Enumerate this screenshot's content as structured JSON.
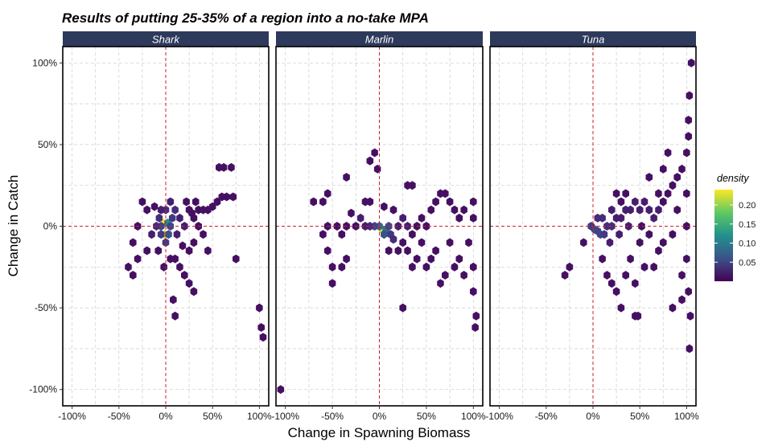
{
  "chart_data": {
    "type": "hexbin-facets",
    "title": "Results of putting 25-35% of a region into a no-take MPA",
    "xlabel": "Change in Spawning Biomass",
    "ylabel": "Change in Catch",
    "xlim": [
      -1.1,
      1.1
    ],
    "ylim": [
      -1.1,
      1.1
    ],
    "x_ticks": [
      -1,
      -0.5,
      0,
      0.5,
      1
    ],
    "x_tick_labels": [
      "-100%",
      "-50%",
      "0%",
      "50%",
      "100%"
    ],
    "y_ticks": [
      -1,
      -0.5,
      0,
      0.5,
      1
    ],
    "y_tick_labels": [
      "-100%",
      "-50%",
      "0%",
      "50%",
      "100%"
    ],
    "reference_lines": {
      "x": 0,
      "y": 0,
      "color": "#cc1f2f"
    },
    "legend": {
      "title": "density",
      "range": [
        0,
        0.24
      ],
      "breaks": [
        0.05,
        0.1,
        0.15,
        0.2
      ],
      "break_labels": [
        "0.05",
        "0.10",
        "0.15",
        "0.20"
      ]
    },
    "colors": {
      "strip_background": "#2e3a5c",
      "strip_text": "#ffffff",
      "gridline": "#cccccc",
      "reference_line": "#cc1f2f"
    },
    "facets": [
      {
        "name": "Shark",
        "points": [
          [
            -0.02,
            0.02,
            0.24
          ],
          [
            -0.01,
            -0.05,
            0.22
          ],
          [
            0.02,
            0.02,
            0.12
          ],
          [
            -0.05,
            0.0,
            0.05
          ],
          [
            0.03,
            -0.05,
            0.06
          ],
          [
            -0.05,
            -0.05,
            0.04
          ],
          [
            0.05,
            0.0,
            0.05
          ],
          [
            0.0,
            -0.1,
            0.04
          ],
          [
            0.07,
            0.05,
            0.04
          ],
          [
            -0.07,
            0.05,
            0.03
          ],
          [
            0.1,
            0.1,
            0.03
          ],
          [
            -0.1,
            0.0,
            0.03
          ],
          [
            0.15,
            0.05,
            0.02
          ],
          [
            0.12,
            -0.05,
            0.02
          ],
          [
            -0.15,
            -0.05,
            0.02
          ],
          [
            0.0,
            0.1,
            0.03
          ],
          [
            0.2,
            0.0,
            0.02
          ],
          [
            0.25,
            0.1,
            0.01
          ],
          [
            0.3,
            0.05,
            0.01
          ],
          [
            0.35,
            0.1,
            0.01
          ],
          [
            0.4,
            0.1,
            0.01
          ],
          [
            0.45,
            0.1,
            0.01
          ],
          [
            0.5,
            0.12,
            0.01
          ],
          [
            0.55,
            0.15,
            0.01
          ],
          [
            0.6,
            0.18,
            0.01
          ],
          [
            0.65,
            0.18,
            0.01
          ],
          [
            0.72,
            0.18,
            0.01
          ],
          [
            0.57,
            0.36,
            0.01
          ],
          [
            0.62,
            0.36,
            0.01
          ],
          [
            0.7,
            0.36,
            0.01
          ],
          [
            -0.25,
            0.15,
            0.01
          ],
          [
            -0.3,
            0.0,
            0.01
          ],
          [
            -0.35,
            -0.1,
            0.01
          ],
          [
            -0.4,
            -0.25,
            0.01
          ],
          [
            -0.35,
            -0.3,
            0.01
          ],
          [
            -0.3,
            -0.2,
            0.01
          ],
          [
            -0.2,
            -0.15,
            0.01
          ],
          [
            0.1,
            -0.2,
            0.01
          ],
          [
            0.2,
            -0.3,
            0.01
          ],
          [
            0.25,
            -0.35,
            0.01
          ],
          [
            0.3,
            -0.4,
            0.01
          ],
          [
            0.15,
            -0.25,
            0.01
          ],
          [
            0.1,
            -0.55,
            0.01
          ],
          [
            0.08,
            -0.45,
            0.01
          ],
          [
            0.45,
            -0.15,
            0.01
          ],
          [
            0.75,
            -0.2,
            0.01
          ],
          [
            1.0,
            -0.5,
            0.01
          ],
          [
            1.02,
            -0.62,
            0.01
          ],
          [
            1.04,
            -0.68,
            0.01
          ],
          [
            0.35,
            0.0,
            0.01
          ],
          [
            0.3,
            -0.1,
            0.01
          ],
          [
            0.4,
            -0.05,
            0.01
          ],
          [
            0.05,
            0.15,
            0.02
          ],
          [
            -0.05,
            0.1,
            0.02
          ],
          [
            -0.12,
            0.12,
            0.01
          ],
          [
            -0.2,
            0.1,
            0.01
          ],
          [
            0.25,
            -0.15,
            0.01
          ],
          [
            0.18,
            -0.12,
            0.01
          ],
          [
            0.05,
            -0.2,
            0.01
          ],
          [
            0.22,
            0.15,
            0.01
          ],
          [
            0.32,
            0.15,
            0.01
          ],
          [
            0.28,
            0.08,
            0.01
          ],
          [
            -0.02,
            -0.25,
            0.01
          ],
          [
            -0.08,
            -0.15,
            0.01
          ]
        ]
      },
      {
        "name": "Marlin",
        "points": [
          [
            0.03,
            -0.02,
            0.22
          ],
          [
            0.07,
            -0.02,
            0.09
          ],
          [
            0.0,
            0.0,
            0.08
          ],
          [
            -0.05,
            0.0,
            0.05
          ],
          [
            0.1,
            0.0,
            0.05
          ],
          [
            0.12,
            -0.05,
            0.04
          ],
          [
            0.05,
            -0.05,
            0.06
          ],
          [
            -0.1,
            0.0,
            0.03
          ],
          [
            0.15,
            -0.08,
            0.03
          ],
          [
            0.2,
            0.0,
            0.02
          ],
          [
            -0.15,
            0.0,
            0.02
          ],
          [
            0.25,
            0.05,
            0.02
          ],
          [
            0.3,
            0.0,
            0.02
          ],
          [
            0.35,
            -0.05,
            0.01
          ],
          [
            0.4,
            0.0,
            0.01
          ],
          [
            0.45,
            0.05,
            0.01
          ],
          [
            0.5,
            0.0,
            0.01
          ],
          [
            0.55,
            0.1,
            0.01
          ],
          [
            0.6,
            0.15,
            0.01
          ],
          [
            0.65,
            0.2,
            0.01
          ],
          [
            0.7,
            0.2,
            0.01
          ],
          [
            0.75,
            0.15,
            0.01
          ],
          [
            0.8,
            0.1,
            0.01
          ],
          [
            0.85,
            0.05,
            0.01
          ],
          [
            0.9,
            0.1,
            0.01
          ],
          [
            1.0,
            0.15,
            0.01
          ],
          [
            1.0,
            0.05,
            0.01
          ],
          [
            0.95,
            -0.1,
            0.01
          ],
          [
            1.0,
            -0.25,
            0.01
          ],
          [
            1.0,
            -0.4,
            0.01
          ],
          [
            1.03,
            -0.55,
            0.01
          ],
          [
            1.02,
            -0.62,
            0.01
          ],
          [
            0.9,
            -0.3,
            0.01
          ],
          [
            0.85,
            -0.2,
            0.01
          ],
          [
            0.7,
            -0.3,
            0.01
          ],
          [
            0.65,
            -0.35,
            0.01
          ],
          [
            0.55,
            -0.2,
            0.01
          ],
          [
            0.4,
            -0.2,
            0.01
          ],
          [
            0.35,
            -0.25,
            0.01
          ],
          [
            0.25,
            -0.5,
            0.01
          ],
          [
            0.3,
            -0.15,
            0.01
          ],
          [
            0.2,
            -0.15,
            0.01
          ],
          [
            0.1,
            -0.15,
            0.01
          ],
          [
            -0.1,
            0.15,
            0.01
          ],
          [
            -0.15,
            0.15,
            0.01
          ],
          [
            -0.35,
            -0.2,
            0.01
          ],
          [
            -0.4,
            -0.25,
            0.01
          ],
          [
            -0.5,
            -0.35,
            0.01
          ],
          [
            -0.5,
            -0.25,
            0.01
          ],
          [
            -0.55,
            -0.15,
            0.01
          ],
          [
            -0.6,
            -0.05,
            0.01
          ],
          [
            -0.55,
            0.0,
            0.01
          ],
          [
            -0.45,
            0.0,
            0.01
          ],
          [
            -0.35,
            0.0,
            0.01
          ],
          [
            -0.25,
            0.0,
            0.01
          ],
          [
            -0.55,
            0.2,
            0.01
          ],
          [
            -0.6,
            0.15,
            0.01
          ],
          [
            -0.7,
            0.15,
            0.01
          ],
          [
            -0.35,
            0.3,
            0.01
          ],
          [
            -0.1,
            0.4,
            0.01
          ],
          [
            -0.05,
            0.45,
            0.01
          ],
          [
            -0.02,
            0.35,
            0.01
          ],
          [
            0.3,
            0.25,
            0.01
          ],
          [
            0.35,
            0.25,
            0.01
          ],
          [
            -0.2,
            0.05,
            0.02
          ],
          [
            0.15,
            0.1,
            0.01
          ],
          [
            -1.05,
            -1.0,
            0.01
          ],
          [
            0.45,
            -0.1,
            0.01
          ],
          [
            0.6,
            -0.15,
            0.01
          ],
          [
            0.5,
            -0.25,
            0.01
          ],
          [
            0.75,
            -0.1,
            0.01
          ],
          [
            0.8,
            -0.25,
            0.01
          ],
          [
            -0.4,
            -0.05,
            0.01
          ],
          [
            -0.3,
            0.08,
            0.01
          ],
          [
            0.05,
            0.12,
            0.01
          ],
          [
            0.25,
            -0.1,
            0.01
          ]
        ]
      },
      {
        "name": "Tuna",
        "points": [
          [
            0.02,
            -0.02,
            0.06
          ],
          [
            0.05,
            -0.03,
            0.05
          ],
          [
            -0.02,
            0.0,
            0.04
          ],
          [
            0.08,
            -0.05,
            0.05
          ],
          [
            0.12,
            -0.05,
            0.04
          ],
          [
            0.15,
            0.0,
            0.03
          ],
          [
            0.2,
            0.0,
            0.03
          ],
          [
            0.25,
            0.05,
            0.02
          ],
          [
            0.3,
            0.05,
            0.02
          ],
          [
            0.35,
            0.1,
            0.02
          ],
          [
            0.4,
            0.1,
            0.02
          ],
          [
            0.45,
            0.15,
            0.02
          ],
          [
            0.5,
            0.1,
            0.02
          ],
          [
            0.55,
            0.15,
            0.02
          ],
          [
            0.6,
            0.1,
            0.02
          ],
          [
            0.65,
            0.05,
            0.02
          ],
          [
            0.7,
            0.1,
            0.02
          ],
          [
            0.75,
            0.15,
            0.01
          ],
          [
            0.8,
            0.2,
            0.01
          ],
          [
            0.85,
            0.25,
            0.01
          ],
          [
            0.9,
            0.3,
            0.01
          ],
          [
            0.95,
            0.35,
            0.01
          ],
          [
            1.0,
            0.45,
            0.01
          ],
          [
            1.02,
            0.55,
            0.01
          ],
          [
            1.02,
            0.65,
            0.01
          ],
          [
            1.03,
            0.8,
            0.01
          ],
          [
            1.05,
            1.0,
            0.01
          ],
          [
            1.0,
            0.2,
            0.01
          ],
          [
            1.0,
            0.0,
            0.01
          ],
          [
            1.0,
            -0.2,
            0.01
          ],
          [
            1.02,
            -0.4,
            0.01
          ],
          [
            1.04,
            -0.55,
            0.01
          ],
          [
            1.03,
            -0.75,
            0.01
          ],
          [
            0.95,
            -0.45,
            0.01
          ],
          [
            0.85,
            -0.5,
            0.01
          ],
          [
            0.45,
            -0.55,
            0.01
          ],
          [
            0.3,
            -0.5,
            0.01
          ],
          [
            0.25,
            -0.4,
            0.01
          ],
          [
            0.2,
            -0.35,
            0.01
          ],
          [
            0.15,
            -0.3,
            0.01
          ],
          [
            0.1,
            -0.2,
            0.01
          ],
          [
            0.35,
            -0.3,
            0.01
          ],
          [
            0.4,
            -0.2,
            0.01
          ],
          [
            0.5,
            -0.1,
            0.01
          ],
          [
            0.6,
            -0.05,
            0.01
          ],
          [
            0.7,
            -0.15,
            0.01
          ],
          [
            0.75,
            -0.1,
            0.01
          ],
          [
            0.55,
            -0.25,
            0.01
          ],
          [
            0.45,
            -0.35,
            0.01
          ],
          [
            0.48,
            -0.55,
            0.01
          ],
          [
            0.2,
            0.1,
            0.02
          ],
          [
            0.3,
            0.15,
            0.01
          ],
          [
            0.25,
            0.2,
            0.01
          ],
          [
            0.35,
            0.2,
            0.01
          ],
          [
            0.6,
            0.3,
            0.01
          ],
          [
            0.7,
            0.2,
            0.01
          ],
          [
            0.75,
            0.35,
            0.01
          ],
          [
            0.8,
            0.45,
            0.01
          ],
          [
            -0.1,
            -0.1,
            0.01
          ],
          [
            -0.25,
            -0.25,
            0.01
          ],
          [
            -0.3,
            -0.3,
            0.01
          ],
          [
            0.1,
            0.05,
            0.03
          ],
          [
            0.05,
            0.05,
            0.03
          ],
          [
            0.18,
            -0.1,
            0.02
          ],
          [
            0.28,
            -0.05,
            0.02
          ],
          [
            0.38,
            0.0,
            0.02
          ],
          [
            0.52,
            0.0,
            0.01
          ],
          [
            0.65,
            -0.25,
            0.01
          ],
          [
            0.85,
            -0.05,
            0.01
          ],
          [
            0.9,
            0.1,
            0.01
          ],
          [
            0.95,
            -0.3,
            0.01
          ]
        ]
      }
    ]
  }
}
